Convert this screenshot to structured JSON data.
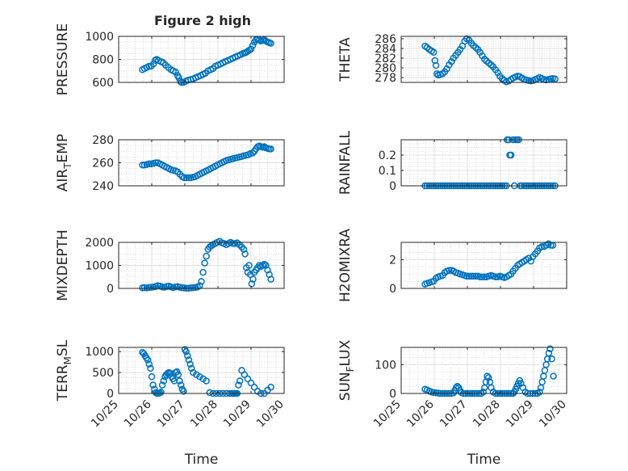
{
  "figure_title": "Figure 2 high",
  "marker_color": "#0072BD",
  "chart_data": [
    {
      "type": "scatter",
      "ylabel": "PRESSURE",
      "ylim": [
        600,
        1000
      ],
      "yticks": [
        600,
        800,
        1000
      ],
      "ytick_labels": [
        "600",
        "800",
        "1000"
      ],
      "x": [
        25.72,
        25.78,
        25.85,
        25.92,
        25.98,
        26.05,
        26.1,
        26.15,
        26.2,
        26.28,
        26.35,
        26.42,
        26.5,
        26.58,
        26.65,
        26.72,
        26.78,
        26.82,
        26.86,
        26.9,
        26.96,
        27.02,
        27.1,
        27.18,
        27.25,
        27.32,
        27.4,
        27.48,
        27.55,
        27.62,
        27.7,
        27.78,
        27.85,
        27.92,
        28.0,
        28.08,
        28.15,
        28.22,
        28.3,
        28.38,
        28.45,
        28.52,
        28.6,
        28.68,
        28.75,
        28.8,
        28.85,
        28.9,
        28.95,
        29.0,
        29.05,
        29.1,
        29.15,
        29.2,
        29.25,
        29.3,
        29.35,
        29.4,
        29.45,
        29.5,
        29.55,
        29.6
      ],
      "y": [
        710,
        720,
        730,
        740,
        740,
        760,
        790,
        800,
        790,
        780,
        770,
        750,
        730,
        710,
        700,
        690,
        660,
        640,
        610,
        600,
        600,
        610,
        620,
        625,
        630,
        640,
        650,
        660,
        670,
        680,
        700,
        710,
        720,
        740,
        750,
        760,
        770,
        780,
        790,
        800,
        810,
        820,
        830,
        840,
        850,
        855,
        860,
        870,
        880,
        890,
        920,
        950,
        970,
        975,
        970,
        960,
        965,
        970,
        960,
        950,
        945,
        940
      ]
    },
    {
      "type": "scatter",
      "ylabel": "THETA",
      "ylim": [
        277,
        286.5
      ],
      "yticks": [
        278,
        280,
        282,
        284,
        286
      ],
      "ytick_labels": [
        "278",
        "280",
        "282",
        "284",
        "286"
      ],
      "x": [
        25.72,
        25.78,
        25.85,
        25.92,
        25.98,
        26.02,
        26.05,
        26.08,
        26.12,
        26.18,
        26.25,
        26.32,
        26.38,
        26.45,
        26.52,
        26.58,
        26.65,
        26.72,
        26.78,
        26.85,
        26.92,
        26.98,
        27.05,
        27.12,
        27.18,
        27.25,
        27.32,
        27.38,
        27.45,
        27.52,
        27.58,
        27.65,
        27.72,
        27.78,
        27.85,
        27.92,
        27.98,
        28.05,
        28.12,
        28.18,
        28.25,
        28.32,
        28.38,
        28.45,
        28.52,
        28.58,
        28.65,
        28.72,
        28.78,
        28.85,
        28.92,
        28.98,
        29.05,
        29.12,
        29.18,
        29.25,
        29.32,
        29.38,
        29.45,
        29.52,
        29.58,
        29.65
      ],
      "y": [
        284.5,
        284.2,
        283.8,
        283.5,
        283.2,
        281.5,
        280.5,
        278.8,
        278.5,
        278.6,
        278.8,
        279.2,
        279.8,
        280.6,
        281.3,
        282.0,
        282.6,
        283.2,
        283.8,
        284.5,
        285.5,
        286.0,
        285.7,
        285.1,
        284.6,
        284.2,
        283.8,
        283.2,
        282.5,
        281.8,
        281.4,
        281.0,
        280.6,
        280.2,
        279.6,
        279.0,
        278.3,
        277.8,
        277.4,
        277.1,
        277.3,
        277.6,
        277.9,
        278.1,
        278.3,
        278.2,
        277.9,
        277.6,
        277.5,
        277.4,
        277.3,
        277.4,
        277.6,
        277.8,
        278.0,
        277.8,
        277.6,
        277.5,
        277.6,
        277.7,
        277.8,
        277.7
      ]
    },
    {
      "type": "scatter",
      "ylabel": "AIR_TEMP",
      "ylabel_display": [
        "AIR",
        "T",
        "EMP"
      ],
      "ylim": [
        240,
        280
      ],
      "yticks": [
        240,
        260,
        280
      ],
      "ytick_labels": [
        "240",
        "260",
        "280"
      ],
      "x": [
        25.72,
        25.78,
        25.85,
        25.92,
        25.98,
        26.05,
        26.12,
        26.18,
        26.25,
        26.32,
        26.38,
        26.45,
        26.52,
        26.58,
        26.65,
        26.72,
        26.78,
        26.85,
        26.92,
        26.98,
        27.05,
        27.12,
        27.18,
        27.25,
        27.32,
        27.38,
        27.45,
        27.52,
        27.58,
        27.65,
        27.72,
        27.78,
        27.85,
        27.92,
        27.98,
        28.05,
        28.12,
        28.18,
        28.25,
        28.32,
        28.38,
        28.45,
        28.52,
        28.58,
        28.65,
        28.72,
        28.78,
        28.85,
        28.92,
        28.98,
        29.05,
        29.1,
        29.15,
        29.2,
        29.25,
        29.3,
        29.35,
        29.4,
        29.45,
        29.5,
        29.55,
        29.6
      ],
      "y": [
        258,
        258,
        258.5,
        259,
        259,
        259.5,
        260,
        260,
        259,
        258,
        257,
        256,
        255,
        254,
        253.5,
        253,
        252,
        250,
        248,
        247,
        247,
        247,
        247,
        247.5,
        248,
        249,
        250,
        251,
        252,
        253,
        254,
        255,
        256,
        257,
        258,
        259,
        260,
        261,
        262,
        262.5,
        263,
        263.5,
        264,
        264.5,
        265,
        265.5,
        266,
        266.5,
        267,
        268,
        268.5,
        270,
        272,
        274,
        274.5,
        274,
        273.5,
        274,
        273,
        272.5,
        272,
        272
      ]
    },
    {
      "type": "scatter",
      "ylabel": "RAINFALL",
      "ylim": [
        0,
        0.3
      ],
      "yticks": [
        0,
        0.1,
        0.2
      ],
      "ytick_labels": [
        "0",
        "0.1",
        "0.2"
      ],
      "x": [
        25.72,
        25.78,
        25.85,
        25.92,
        25.98,
        26.05,
        26.12,
        26.18,
        26.25,
        26.32,
        26.38,
        26.45,
        26.52,
        26.58,
        26.65,
        26.72,
        26.78,
        26.85,
        26.92,
        26.98,
        27.05,
        27.12,
        27.18,
        27.25,
        27.32,
        27.38,
        27.45,
        27.52,
        27.58,
        27.65,
        27.72,
        27.78,
        27.85,
        27.92,
        27.98,
        28.05,
        28.12,
        28.18,
        28.2,
        28.25,
        28.28,
        28.32,
        28.38,
        28.42,
        28.45,
        28.5,
        28.55,
        28.6,
        28.65,
        28.72,
        28.78,
        28.85,
        28.92,
        28.98,
        29.05,
        29.12,
        29.18,
        29.25,
        29.32,
        29.38,
        29.45,
        29.52,
        29.58,
        29.65
      ],
      "y": [
        0,
        0,
        0,
        0,
        0,
        0,
        0,
        0,
        0,
        0,
        0,
        0,
        0,
        0,
        0,
        0,
        0,
        0,
        0,
        0,
        0,
        0,
        0,
        0,
        0,
        0,
        0,
        0,
        0,
        0,
        0,
        0,
        0,
        0,
        0,
        0,
        0,
        0,
        0.3,
        0.3,
        0.2,
        0.2,
        0.3,
        0,
        0.3,
        0.3,
        0.3,
        0,
        0,
        0,
        0,
        0,
        0,
        0,
        0,
        0,
        0,
        0,
        0,
        0,
        0,
        0,
        0,
        0
      ]
    },
    {
      "type": "scatter",
      "ylabel": "MIXDEPTH",
      "ylim": [
        0,
        2000
      ],
      "yticks": [
        0,
        1000,
        2000
      ],
      "ytick_labels": [
        "0",
        "1000",
        "2000"
      ],
      "x": [
        25.72,
        25.78,
        25.85,
        25.92,
        25.98,
        26.05,
        26.12,
        26.18,
        26.25,
        26.32,
        26.38,
        26.45,
        26.52,
        26.58,
        26.65,
        26.72,
        26.78,
        26.85,
        26.92,
        26.98,
        27.05,
        27.12,
        27.18,
        27.25,
        27.32,
        27.38,
        27.45,
        27.5,
        27.55,
        27.6,
        27.65,
        27.7,
        27.75,
        27.8,
        27.85,
        27.92,
        27.98,
        28.05,
        28.12,
        28.18,
        28.25,
        28.32,
        28.38,
        28.45,
        28.52,
        28.58,
        28.65,
        28.72,
        28.78,
        28.82,
        28.86,
        28.9,
        28.94,
        28.98,
        29.02,
        29.06,
        29.1,
        29.15,
        29.2,
        29.25,
        29.3,
        29.35,
        29.4,
        29.45,
        29.5,
        29.55,
        29.6
      ],
      "y": [
        20,
        30,
        20,
        40,
        50,
        60,
        80,
        120,
        100,
        60,
        50,
        80,
        100,
        60,
        40,
        60,
        80,
        50,
        30,
        20,
        10,
        10,
        20,
        30,
        40,
        60,
        120,
        300,
        700,
        1100,
        1400,
        1700,
        1800,
        1850,
        1900,
        1950,
        2000,
        2050,
        1980,
        1950,
        1900,
        1950,
        2000,
        1950,
        1950,
        1980,
        1900,
        1800,
        1700,
        1500,
        900,
        700,
        1000,
        600,
        200,
        400,
        700,
        800,
        900,
        1000,
        950,
        1000,
        1050,
        1000,
        800,
        600,
        400
      ]
    },
    {
      "type": "scatter",
      "ylabel": "H2OMIXRA",
      "ylim": [
        0,
        3.2
      ],
      "yticks": [
        0,
        2
      ],
      "ytick_labels": [
        "0",
        "2"
      ],
      "x": [
        25.72,
        25.78,
        25.85,
        25.92,
        25.98,
        26.05,
        26.12,
        26.18,
        26.25,
        26.32,
        26.38,
        26.45,
        26.52,
        26.58,
        26.65,
        26.72,
        26.78,
        26.85,
        26.92,
        26.98,
        27.05,
        27.12,
        27.18,
        27.25,
        27.32,
        27.38,
        27.45,
        27.52,
        27.58,
        27.65,
        27.72,
        27.78,
        27.85,
        27.92,
        27.98,
        28.05,
        28.12,
        28.18,
        28.25,
        28.32,
        28.38,
        28.45,
        28.52,
        28.58,
        28.65,
        28.72,
        28.78,
        28.85,
        28.92,
        28.98,
        29.05,
        29.12,
        29.18,
        29.25,
        29.32,
        29.38,
        29.45,
        29.52,
        29.58
      ],
      "y": [
        0.3,
        0.35,
        0.4,
        0.45,
        0.5,
        0.7,
        0.8,
        0.85,
        0.9,
        1.1,
        1.2,
        1.25,
        1.25,
        1.2,
        1.1,
        1.05,
        1.0,
        0.95,
        0.9,
        0.85,
        0.85,
        0.85,
        0.85,
        0.85,
        0.85,
        0.8,
        0.8,
        0.8,
        0.8,
        0.85,
        0.9,
        0.85,
        0.8,
        0.8,
        0.85,
        0.8,
        0.75,
        0.8,
        0.9,
        1.0,
        1.2,
        1.4,
        1.6,
        1.7,
        1.8,
        1.9,
        2.0,
        2.1,
        1.9,
        2.2,
        2.4,
        2.6,
        2.8,
        2.9,
        2.9,
        3.0,
        3.1,
        3.0,
        3.0
      ]
    },
    {
      "type": "scatter",
      "ylabel": "TERR_MSL",
      "ylabel_display": [
        "TERR",
        "M",
        "SL"
      ],
      "ylim": [
        0,
        1100
      ],
      "yticks": [
        0,
        500,
        1000
      ],
      "ytick_labels": [
        "0",
        "500",
        "1000"
      ],
      "x": [
        25.72,
        25.76,
        25.8,
        25.84,
        25.88,
        25.92,
        25.96,
        26.0,
        26.04,
        26.08,
        26.12,
        26.16,
        26.2,
        26.24,
        26.28,
        26.32,
        26.36,
        26.4,
        26.44,
        26.48,
        26.52,
        26.56,
        26.6,
        26.64,
        26.68,
        26.72,
        26.76,
        26.8,
        26.84,
        26.88,
        26.92,
        26.96,
        27.0,
        27.04,
        27.08,
        27.12,
        27.16,
        27.2,
        27.25,
        27.35,
        27.45,
        27.55,
        27.65,
        27.75,
        27.85,
        27.95,
        28.05,
        28.15,
        28.25,
        28.35,
        28.42,
        28.46,
        28.5,
        28.54,
        28.58,
        28.62,
        28.66,
        28.72,
        28.8,
        28.9,
        29.0,
        29.1,
        29.2,
        29.3,
        29.4,
        29.5,
        29.6
      ],
      "y": [
        980,
        950,
        900,
        850,
        800,
        700,
        600,
        400,
        200,
        100,
        20,
        0,
        0,
        10,
        30,
        200,
        300,
        400,
        450,
        480,
        500,
        480,
        400,
        350,
        300,
        500,
        520,
        450,
        300,
        200,
        100,
        50,
        1050,
        1000,
        900,
        800,
        700,
        600,
        500,
        450,
        400,
        350,
        300,
        20,
        0,
        0,
        0,
        0,
        0,
        0,
        0,
        0,
        0,
        0,
        0,
        200,
        300,
        550,
        450,
        350,
        250,
        150,
        50,
        0,
        0,
        80,
        150
      ]
    },
    {
      "type": "scatter",
      "ylabel": "SUN_FLUX",
      "ylabel_display": [
        "SUN",
        "F",
        "LUX"
      ],
      "ylim": [
        0,
        160
      ],
      "yticks": [
        0,
        100
      ],
      "ytick_labels": [
        "0",
        "100"
      ],
      "x": [
        25.72,
        25.78,
        25.85,
        25.92,
        25.98,
        26.05,
        26.12,
        26.18,
        26.25,
        26.32,
        26.38,
        26.45,
        26.52,
        26.58,
        26.62,
        26.66,
        26.7,
        26.74,
        26.78,
        26.82,
        26.88,
        26.95,
        27.02,
        27.08,
        27.15,
        27.22,
        27.28,
        27.35,
        27.42,
        27.48,
        27.52,
        27.56,
        27.6,
        27.64,
        27.68,
        27.72,
        27.78,
        27.85,
        27.92,
        27.98,
        28.05,
        28.12,
        28.18,
        28.25,
        28.32,
        28.38,
        28.42,
        28.46,
        28.5,
        28.54,
        28.58,
        28.62,
        28.68,
        28.75,
        28.82,
        28.9,
        28.98,
        29.05,
        29.12,
        29.18,
        29.22,
        29.26,
        29.3,
        29.34,
        29.38,
        29.42,
        29.46,
        29.5,
        29.55,
        29.6
      ],
      "y": [
        15,
        12,
        8,
        5,
        3,
        2,
        1,
        0,
        0,
        0,
        0,
        0,
        0,
        2,
        10,
        20,
        25,
        20,
        10,
        3,
        0,
        0,
        0,
        0,
        0,
        0,
        0,
        0,
        0,
        5,
        20,
        40,
        60,
        55,
        40,
        20,
        5,
        0,
        0,
        0,
        0,
        0,
        0,
        0,
        0,
        0,
        5,
        15,
        25,
        35,
        45,
        35,
        20,
        5,
        0,
        0,
        0,
        0,
        0,
        5,
        20,
        40,
        60,
        80,
        100,
        120,
        140,
        155,
        120,
        60
      ]
    }
  ],
  "x_axis": {
    "xlim": [
      25,
      30
    ],
    "ticks": [
      25,
      26,
      27,
      28,
      29,
      30
    ],
    "tick_labels": [
      "10/25",
      "10/26",
      "10/27",
      "10/28",
      "10/29",
      "10/30"
    ],
    "xlabel": "Time"
  }
}
